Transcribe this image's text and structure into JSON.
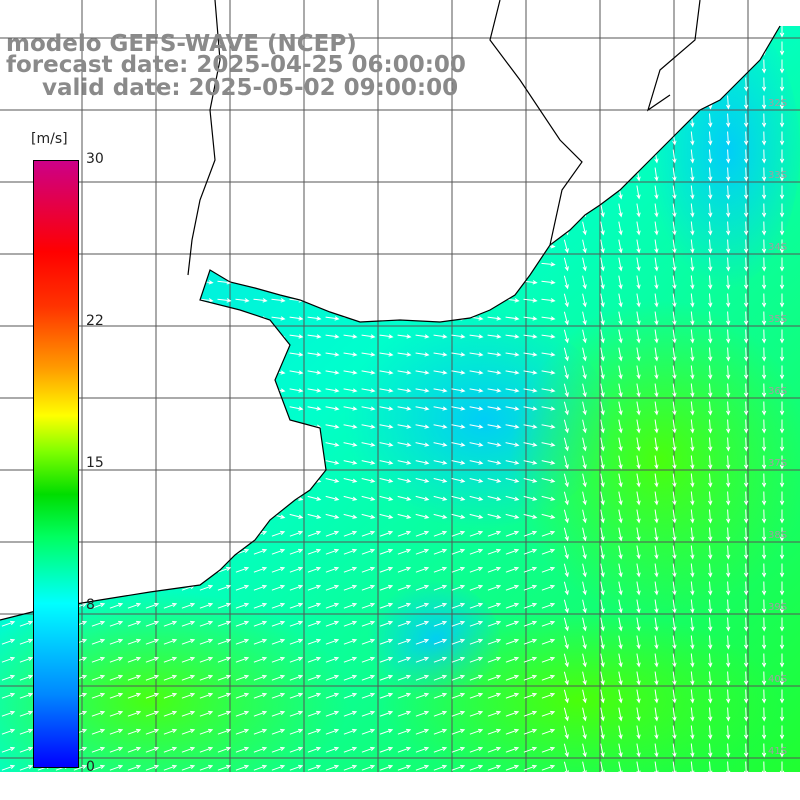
{
  "title": {
    "line1": "modelo GEFS-WAVE (NCEP)",
    "line2": "forecast date: 2025-04-25 06:00:00",
    "line3": "valid date: 2025-05-02 09:00:00"
  },
  "colorbar": {
    "units": "[m/s]",
    "min": 0,
    "max": 30,
    "ticks": [
      {
        "value": 30,
        "label": "30"
      },
      {
        "value": 22,
        "label": "22"
      },
      {
        "value": 15,
        "label": "15"
      },
      {
        "value": 8,
        "label": "8"
      },
      {
        "value": 0,
        "label": "0"
      }
    ]
  },
  "colors": {
    "land": "#ffffff",
    "coastline": "#000000",
    "grid": "#555555",
    "arrows": "#ffffff"
  }
}
